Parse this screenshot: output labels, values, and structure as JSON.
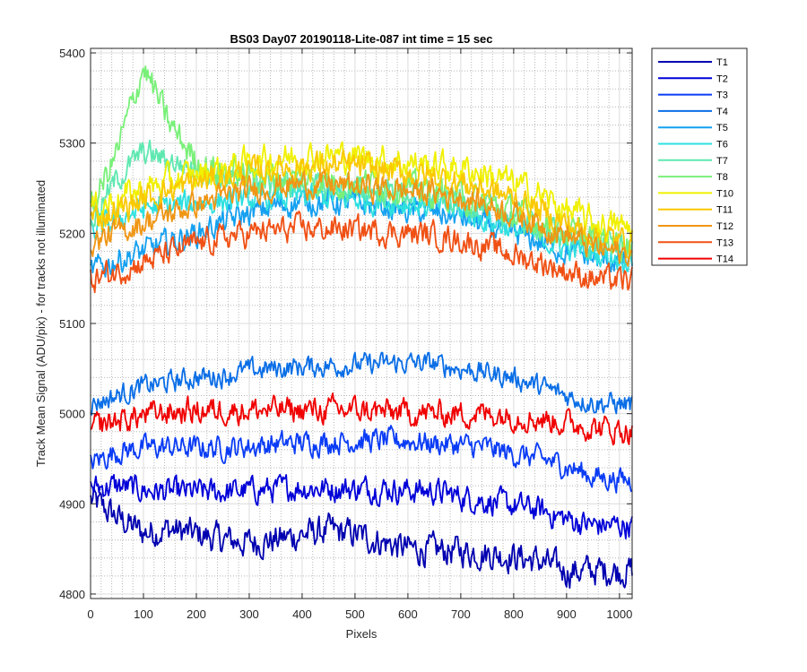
{
  "chart_data": {
    "type": "line",
    "title": "BS03 Day07 20190118-Lite-087 int time = 15 sec",
    "xlabel": "Pixels",
    "ylabel": "Track Mean Signal (ADU/pix) - for tracks not illuminated",
    "xlim": [
      0,
      1024
    ],
    "ylim": [
      4795,
      5405
    ],
    "xticks": [
      "0",
      "100",
      "200",
      "300",
      "400",
      "500",
      "600",
      "700",
      "800",
      "900",
      "1000"
    ],
    "yticks": [
      "4800",
      "4900",
      "5000",
      "5100",
      "5200",
      "5300",
      "5400"
    ],
    "grid": "on (major and minor)",
    "legend_position": "outside-right-top",
    "x_sample_points": [
      0,
      50,
      100,
      150,
      200,
      250,
      300,
      350,
      400,
      450,
      500,
      550,
      600,
      650,
      700,
      750,
      800,
      850,
      900,
      950,
      1024
    ],
    "series": [
      {
        "name": "T1",
        "color": "#0000b0",
        "noise": 14,
        "values": [
          4905,
          4885,
          4868,
          4872,
          4866,
          4860,
          4857,
          4860,
          4866,
          4870,
          4866,
          4858,
          4850,
          4848,
          4848,
          4845,
          4842,
          4836,
          4825,
          4826,
          4826
        ]
      },
      {
        "name": "T2",
        "color": "#0000d8",
        "noise": 12,
        "values": [
          4918,
          4920,
          4915,
          4913,
          4913,
          4913,
          4915,
          4916,
          4918,
          4917,
          4917,
          4917,
          4915,
          4914,
          4908,
          4903,
          4898,
          4893,
          4883,
          4876,
          4876
        ]
      },
      {
        "name": "T3",
        "color": "#0a3cf5",
        "noise": 11,
        "values": [
          4945,
          4958,
          4962,
          4963,
          4962,
          4962,
          4964,
          4966,
          4968,
          4969,
          4970,
          4970,
          4970,
          4967,
          4965,
          4962,
          4955,
          4950,
          4942,
          4930,
          4926
        ]
      },
      {
        "name": "T4",
        "color": "#0a6ee6",
        "noise": 10,
        "values": [
          5010,
          5020,
          5030,
          5035,
          5040,
          5042,
          5048,
          5050,
          5052,
          5053,
          5054,
          5055,
          5056,
          5055,
          5050,
          5045,
          5040,
          5030,
          5020,
          5012,
          5010
        ]
      },
      {
        "name": "T5",
        "color": "#14a0f0",
        "noise": 12,
        "values": [
          5158,
          5170,
          5180,
          5190,
          5200,
          5212,
          5222,
          5230,
          5235,
          5235,
          5233,
          5230,
          5225,
          5222,
          5218,
          5208,
          5200,
          5190,
          5180,
          5172,
          5168
        ]
      },
      {
        "name": "T6",
        "color": "#2ee0e0",
        "noise": 12,
        "values": [
          5200,
          5215,
          5228,
          5230,
          5233,
          5236,
          5238,
          5240,
          5240,
          5240,
          5238,
          5236,
          5233,
          5230,
          5225,
          5215,
          5205,
          5195,
          5185,
          5178,
          5172
        ]
      },
      {
        "name": "T7",
        "color": "#5ee8b0",
        "noise": 12,
        "values": [
          5210,
          5260,
          5290,
          5280,
          5272,
          5262,
          5258,
          5255,
          5253,
          5250,
          5248,
          5246,
          5244,
          5240,
          5235,
          5228,
          5218,
          5208,
          5198,
          5190,
          5185
        ]
      },
      {
        "name": "T8",
        "color": "#78f078",
        "noise": 14,
        "values": [
          5225,
          5290,
          5385,
          5320,
          5280,
          5268,
          5264,
          5262,
          5260,
          5258,
          5256,
          5254,
          5250,
          5245,
          5240,
          5232,
          5222,
          5212,
          5202,
          5194,
          5188
        ]
      },
      {
        "name": "T10",
        "color": "#f0f000",
        "noise": 14,
        "values": [
          5225,
          5238,
          5248,
          5258,
          5265,
          5272,
          5278,
          5282,
          5285,
          5286,
          5285,
          5282,
          5278,
          5275,
          5272,
          5266,
          5255,
          5242,
          5225,
          5212,
          5205
        ]
      },
      {
        "name": "T11",
        "color": "#fac800",
        "noise": 13,
        "values": [
          5215,
          5225,
          5238,
          5248,
          5256,
          5262,
          5268,
          5272,
          5275,
          5275,
          5274,
          5270,
          5266,
          5262,
          5256,
          5248,
          5238,
          5225,
          5210,
          5198,
          5190
        ]
      },
      {
        "name": "T12",
        "color": "#f09614",
        "noise": 12,
        "values": [
          5190,
          5200,
          5212,
          5222,
          5232,
          5240,
          5248,
          5252,
          5255,
          5254,
          5252,
          5250,
          5247,
          5245,
          5240,
          5232,
          5222,
          5210,
          5198,
          5185,
          5175
        ]
      },
      {
        "name": "T13",
        "color": "#f05014",
        "noise": 12,
        "values": [
          5148,
          5158,
          5168,
          5178,
          5188,
          5195,
          5200,
          5203,
          5205,
          5205,
          5204,
          5202,
          5200,
          5198,
          5192,
          5185,
          5176,
          5168,
          5158,
          5150,
          5146
        ]
      },
      {
        "name": "T14",
        "color": "#f00000",
        "noise": 12,
        "values": [
          4985,
          4992,
          4998,
          5002,
          5003,
          5004,
          5004,
          5004,
          5004,
          5004,
          5004,
          5002,
          5001,
          5000,
          5000,
          5000,
          4998,
          4994,
          4990,
          4985,
          4980
        ]
      }
    ]
  }
}
